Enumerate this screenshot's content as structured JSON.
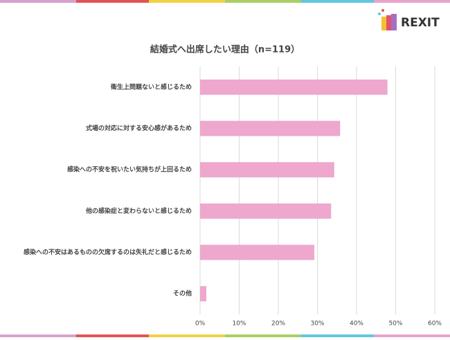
{
  "brand": "REXIT",
  "chart_data": {
    "type": "bar",
    "orientation": "horizontal",
    "title": "結婚式へ出席したい理由（n=119）",
    "categories": [
      "衛生上問題ないと感じるため",
      "式場の対応に対する安心感があるため",
      "感染への不安を祝いたい気持ちが上回るため",
      "他の感染症と変わらないと感じるため",
      "感染への不安はあるものの欠席するのは失礼だと感じるため",
      "その他"
    ],
    "values": [
      47.9,
      35.8,
      34.3,
      33.5,
      29.2,
      1.6
    ],
    "color": "#eea7cd",
    "xlim": [
      0,
      60
    ],
    "xticks": [
      {
        "value": 0,
        "label": "0%"
      },
      {
        "value": 10,
        "label": "10%"
      },
      {
        "value": 20,
        "label": "20%"
      },
      {
        "value": 30,
        "label": "30%"
      },
      {
        "value": 40,
        "label": "40%"
      },
      {
        "value": 50,
        "label": "50%"
      },
      {
        "value": 60,
        "label": "60%"
      }
    ],
    "grid": true
  }
}
